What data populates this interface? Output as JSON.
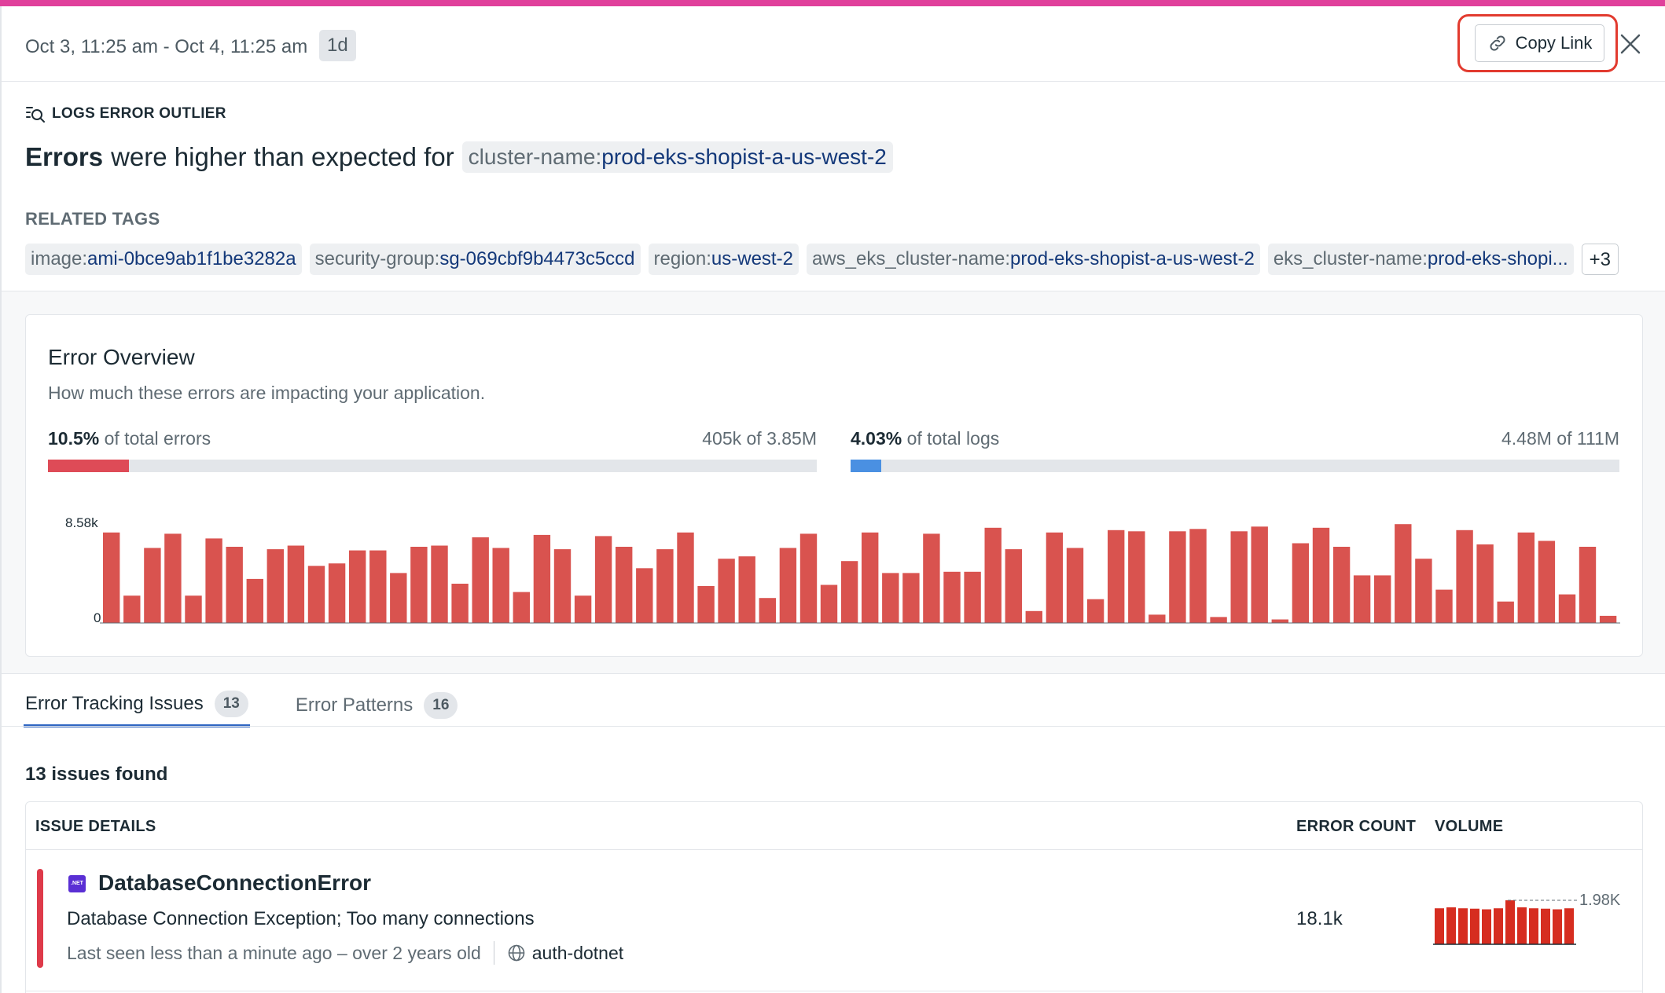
{
  "header": {
    "time_range": "Oct 3, 11:25 am - Oct 4, 11:25 am",
    "duration_badge": "1d",
    "copy_link_label": "Copy Link"
  },
  "outlier": {
    "type_label": "LOGS ERROR OUTLIER",
    "headline_bold": "Errors",
    "headline_rest": "were higher than expected for",
    "tag_key": "cluster-name:",
    "tag_value": "prod-eks-shopist-a-us-west-2"
  },
  "related_tags": {
    "label": "RELATED TAGS",
    "tags": [
      {
        "key": "image:",
        "value": "ami-0bce9ab1f1be3282a"
      },
      {
        "key": "security-group:",
        "value": "sg-069cbf9b4473c5ccd"
      },
      {
        "key": "region:",
        "value": "us-west-2"
      },
      {
        "key": "aws_eks_cluster-name:",
        "value": "prod-eks-shopist-a-us-west-2"
      },
      {
        "key": "eks_cluster-name:",
        "value": "prod-eks-shopi..."
      }
    ],
    "more": "+3"
  },
  "overview": {
    "title": "Error Overview",
    "subtitle": "How much these errors are impacting your application.",
    "errors_stat": {
      "percent": "10.5%",
      "label": "of total errors",
      "ratio": "405k of 3.85M",
      "fraction": 0.105,
      "color": "#de4b57"
    },
    "logs_stat": {
      "percent": "4.03%",
      "label": "of total logs",
      "ratio": "4.48M of 111M",
      "fraction": 0.0403,
      "color": "#4a90e2"
    }
  },
  "chart_data": {
    "type": "bar",
    "ylim": [
      0,
      8580
    ],
    "y_ticks": [
      "8.58k",
      "0"
    ],
    "color": "#d9534f",
    "values": [
      7600,
      2300,
      6300,
      7500,
      2300,
      7100,
      6400,
      3700,
      6200,
      6500,
      4800,
      5000,
      6100,
      6100,
      4200,
      6400,
      6500,
      3300,
      7200,
      6300,
      2600,
      7400,
      6200,
      2300,
      7300,
      6400,
      4600,
      6200,
      7600,
      3100,
      5400,
      5600,
      2100,
      6300,
      7500,
      3200,
      5200,
      7600,
      4200,
      4200,
      7500,
      4300,
      4300,
      8000,
      6200,
      1000,
      7600,
      6300,
      2000,
      7800,
      7700,
      700,
      7700,
      7900,
      500,
      7700,
      8100,
      300,
      6700,
      8000,
      6400,
      4000,
      4000,
      8300,
      5400,
      2800,
      7800,
      6600,
      1800,
      7600,
      6900,
      2400,
      6400,
      600
    ]
  },
  "tabs": [
    {
      "label": "Error Tracking Issues",
      "count": "13",
      "active": true
    },
    {
      "label": "Error Patterns",
      "count": "16",
      "active": false
    }
  ],
  "issues": {
    "found_label": "13 issues found",
    "columns": {
      "details": "ISSUE DETAILS",
      "count": "ERROR COUNT",
      "volume": "VOLUME"
    },
    "rows": [
      {
        "lang_icon": ".NET",
        "title": "DatabaseConnectionError",
        "message": "Database Connection Exception; Too many connections",
        "seen": "Last seen less than a minute ago – over 2 years old",
        "service_icon": "globe-icon",
        "service": "auth-dotnet",
        "error_count": "18.1k",
        "volume_max_label": "1.98K",
        "volume_values": [
          1800,
          1850,
          1800,
          1780,
          1750,
          1800,
          1980,
          1850,
          1800,
          1780,
          1750,
          1800
        ],
        "volume_color": "#d62d20"
      }
    ]
  }
}
